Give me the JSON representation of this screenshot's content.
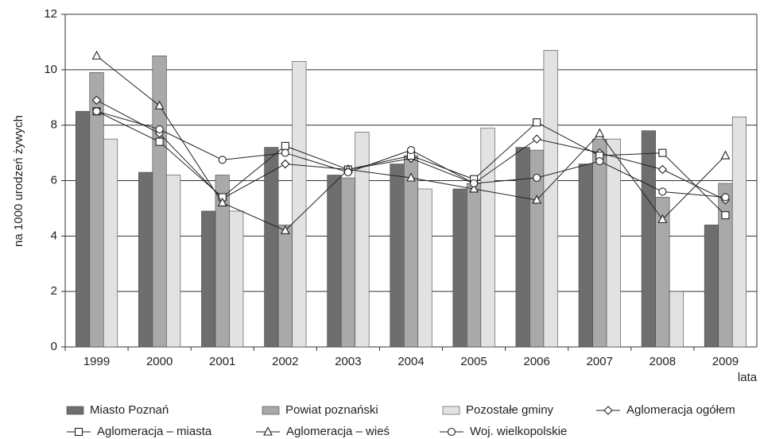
{
  "chart_data": {
    "type": "bar-line",
    "y_label": "na 1000 urodzeń żywych",
    "x_label": "lata",
    "categories": [
      "1999",
      "2000",
      "2001",
      "2002",
      "2003",
      "2004",
      "2005",
      "2006",
      "2007",
      "2008",
      "2009"
    ],
    "ylim": [
      0,
      12
    ],
    "yticks": [
      0,
      2,
      4,
      6,
      8,
      10,
      12
    ],
    "grid": true,
    "series": [
      {
        "name": "Miasto Poznań",
        "kind": "bar",
        "color": "#6e6e6e",
        "values": [
          8.5,
          6.3,
          4.9,
          7.2,
          6.2,
          6.6,
          5.7,
          7.2,
          6.6,
          7.8,
          4.4
        ]
      },
      {
        "name": "Powiat poznański",
        "kind": "bar",
        "color": "#a9a9a9",
        "values": [
          9.9,
          10.5,
          6.2,
          4.4,
          6.1,
          6.9,
          5.9,
          7.1,
          7.5,
          5.4,
          5.9
        ]
      },
      {
        "name": "Pozostałe gminy",
        "kind": "bar",
        "color": "#e2e2e2",
        "values": [
          7.5,
          6.2,
          4.9,
          10.3,
          7.75,
          5.7,
          7.9,
          10.7,
          7.5,
          2.0,
          8.3
        ]
      },
      {
        "name": "Aglomeracja ogółem",
        "kind": "line",
        "marker": "diamond",
        "color": "#222222",
        "values": [
          8.9,
          7.7,
          5.35,
          6.6,
          6.4,
          6.8,
          5.9,
          7.5,
          7.0,
          6.4,
          5.3
        ]
      },
      {
        "name": "Aglomeracja – miasta",
        "kind": "line",
        "marker": "square",
        "color": "#222222",
        "values": [
          8.5,
          7.4,
          5.4,
          7.25,
          6.4,
          6.9,
          6.05,
          8.1,
          6.9,
          7.0,
          4.75
        ]
      },
      {
        "name": "Aglomeracja – wieś",
        "kind": "line",
        "marker": "triangle",
        "color": "#222222",
        "values": [
          10.5,
          8.7,
          5.2,
          4.2,
          6.4,
          6.1,
          5.7,
          5.3,
          7.7,
          4.6,
          6.9
        ]
      },
      {
        "name": "Woj. wielkopolskie",
        "kind": "line",
        "marker": "circle",
        "color": "#222222",
        "values": [
          8.5,
          7.85,
          6.75,
          7.0,
          6.3,
          7.1,
          5.9,
          6.1,
          6.7,
          5.6,
          5.4
        ]
      }
    ]
  }
}
